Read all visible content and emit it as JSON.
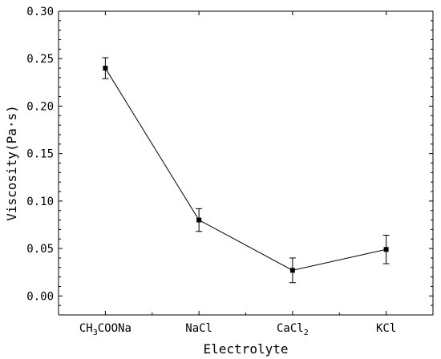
{
  "chart_data": {
    "type": "line",
    "title": "",
    "xlabel": "Electrolyte",
    "ylabel": "Viscosity(Pa·s)",
    "ylim": [
      -0.02,
      0.3
    ],
    "yticks": [
      0.0,
      0.05,
      0.1,
      0.15,
      0.2,
      0.25,
      0.3
    ],
    "ytick_labels": [
      "0.00",
      "0.05",
      "0.10",
      "0.15",
      "0.20",
      "0.25",
      "0.30"
    ],
    "categories": [
      "CH3COONa",
      "NaCl",
      "CaCl2",
      "KCl"
    ],
    "category_labels": [
      {
        "base": "CH",
        "sub": "3",
        "rest": "COONa"
      },
      {
        "base": "NaCl",
        "sub": "",
        "rest": ""
      },
      {
        "base": "CaCl",
        "sub": "2",
        "rest": ""
      },
      {
        "base": "KCl",
        "sub": "",
        "rest": ""
      }
    ],
    "series": [
      {
        "values": [
          0.24,
          0.08,
          0.027,
          0.049
        ],
        "errors": [
          0.011,
          0.012,
          0.013,
          0.015
        ]
      }
    ],
    "grid": false,
    "legend": "none",
    "color": "#000000"
  }
}
